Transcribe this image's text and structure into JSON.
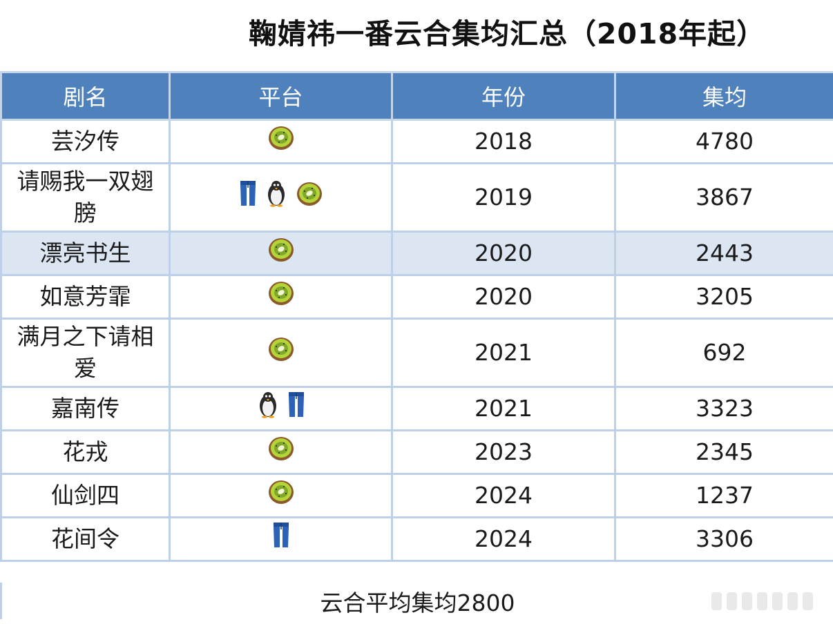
{
  "title": "鞠婧祎一番云合集均汇总（2018年起）",
  "table": {
    "headers": [
      "剧名",
      "平台",
      "年份",
      "集均"
    ],
    "rows": [
      {
        "name": "芸汐传",
        "platforms": [
          "kiwi"
        ],
        "year": "2018",
        "avg": "4780"
      },
      {
        "name": "请赐我一双翅膀",
        "platforms": [
          "jeans",
          "penguin",
          "kiwi"
        ],
        "year": "2019",
        "avg": "3867"
      },
      {
        "name": "漂亮书生",
        "platforms": [
          "kiwi"
        ],
        "year": "2020",
        "avg": "2443"
      },
      {
        "name": "如意芳霏",
        "platforms": [
          "kiwi"
        ],
        "year": "2020",
        "avg": "3205"
      },
      {
        "name": "满月之下请相爱",
        "platforms": [
          "kiwi"
        ],
        "year": "2021",
        "avg": "692"
      },
      {
        "name": "嘉南传",
        "platforms": [
          "penguin",
          "jeans"
        ],
        "year": "2021",
        "avg": "3323"
      },
      {
        "name": "花戎",
        "platforms": [
          "kiwi"
        ],
        "year": "2023",
        "avg": "2345"
      },
      {
        "name": "仙剑四",
        "platforms": [
          "kiwi"
        ],
        "year": "2024",
        "avg": "1237"
      },
      {
        "name": "花间令",
        "platforms": [
          "jeans"
        ],
        "year": "2024",
        "avg": "3306"
      }
    ]
  },
  "footer": "云合平均集均2800",
  "colors": {
    "header_bg": "#4f81bd",
    "highlight_row": "#dce6f2",
    "border": "#bdd0e8"
  }
}
